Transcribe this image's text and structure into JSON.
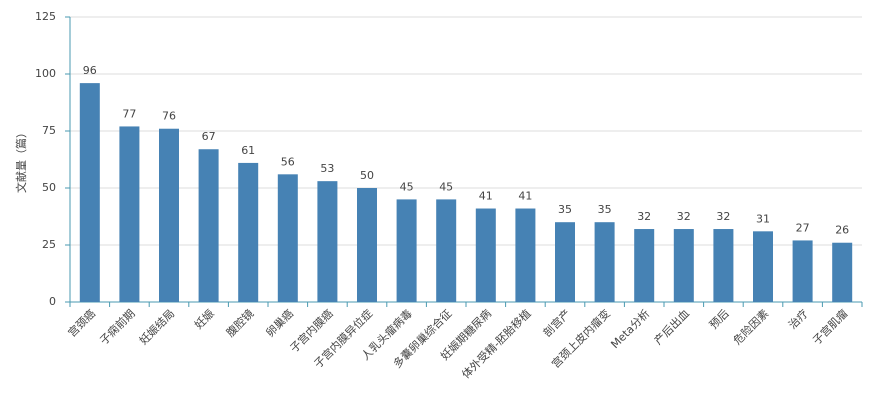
{
  "chart_data": {
    "type": "bar",
    "y_label": "文献量（篇）",
    "categories": [
      "宫颈癌",
      "子痫前期",
      "妊娠结局",
      "妊娠",
      "腹腔镜",
      "卵巢癌",
      "子宫内膜癌",
      "子宫内膜异位症",
      "人乳头瘤病毒",
      "多囊卵巢综合征",
      "妊娠期糖尿病",
      "体外受精-胚胎移植",
      "剖宫产",
      "宫颈上皮内瘤变",
      "Meta分析",
      "产后出血",
      "预后",
      "危险因素",
      "治疗",
      "子宫肌瘤"
    ],
    "values": [
      96,
      77,
      76,
      67,
      61,
      56,
      53,
      50,
      45,
      45,
      41,
      41,
      35,
      35,
      32,
      32,
      32,
      31,
      27,
      26
    ],
    "color": "#4682b4",
    "ylim": [
      0,
      125
    ],
    "yticks": [
      0,
      25,
      50,
      75,
      100,
      125
    ],
    "grid": true
  }
}
